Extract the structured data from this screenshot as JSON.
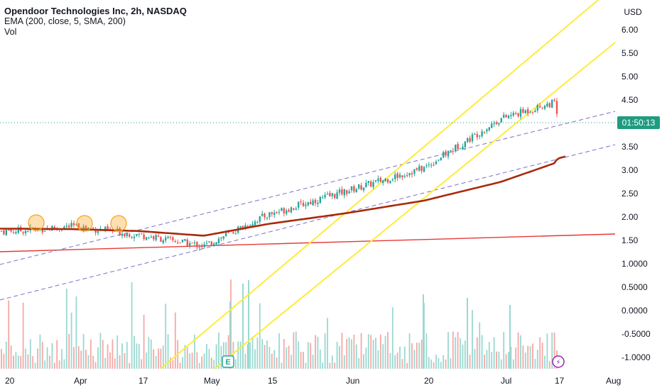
{
  "legend": {
    "title": "Opendoor Technologies Inc, 2h, NASDAQ",
    "ema": "EMA (200, close, 5, SMA, 200)",
    "vol": "Vol"
  },
  "currency": "USD",
  "countdown": "01:50:13",
  "event_badges": {
    "earnings": "E",
    "dividends": "⚡"
  },
  "colors": {
    "up": "#26a69a",
    "down": "#ef5350",
    "ema": "#a82a0c",
    "trendline": "#e53935",
    "channel": "#ffeb3b",
    "dashed": "#7b6fc9",
    "price_line": "#1f9c7f",
    "highlight": "#f6a623"
  },
  "chart_data": {
    "type": "candlestick",
    "y_axis_ticks": [
      "6.00",
      "5.50",
      "5.00",
      "4.50",
      "4.00",
      "3.50",
      "3.00",
      "2.50",
      "2.00",
      "1.50",
      "1.0000",
      "0.5000",
      "0.0000",
      "-0.5000",
      "-1.0000"
    ],
    "x_axis_labels": [
      "20",
      "Apr",
      "17",
      "May",
      "15",
      "Jun",
      "20",
      "Jul",
      "17",
      "Aug"
    ],
    "last_price_countdown": "01:50:13",
    "price_path": [
      [
        "20",
        1.7
      ],
      [
        "Apr",
        1.8
      ],
      [
        "17",
        1.62
      ],
      [
        "May",
        1.38
      ],
      [
        "15",
        2.05
      ],
      [
        "Jun",
        2.55
      ],
      [
        "20",
        3.05
      ],
      [
        "Jul",
        4.1
      ],
      [
        "17",
        4.45
      ],
      [
        "current",
        4.05
      ]
    ],
    "ema_200": [
      [
        "20",
        1.75
      ],
      [
        "Apr",
        1.74
      ],
      [
        "17",
        1.7
      ],
      [
        "May",
        1.6
      ],
      [
        "15",
        1.85
      ],
      [
        "Jun",
        2.08
      ],
      [
        "20",
        2.35
      ],
      [
        "Jul",
        2.75
      ],
      [
        "17",
        3.15
      ],
      [
        "end",
        3.25
      ]
    ],
    "highlighted_peaks": [
      "late Mar",
      "early Apr",
      "mid Apr"
    ]
  }
}
